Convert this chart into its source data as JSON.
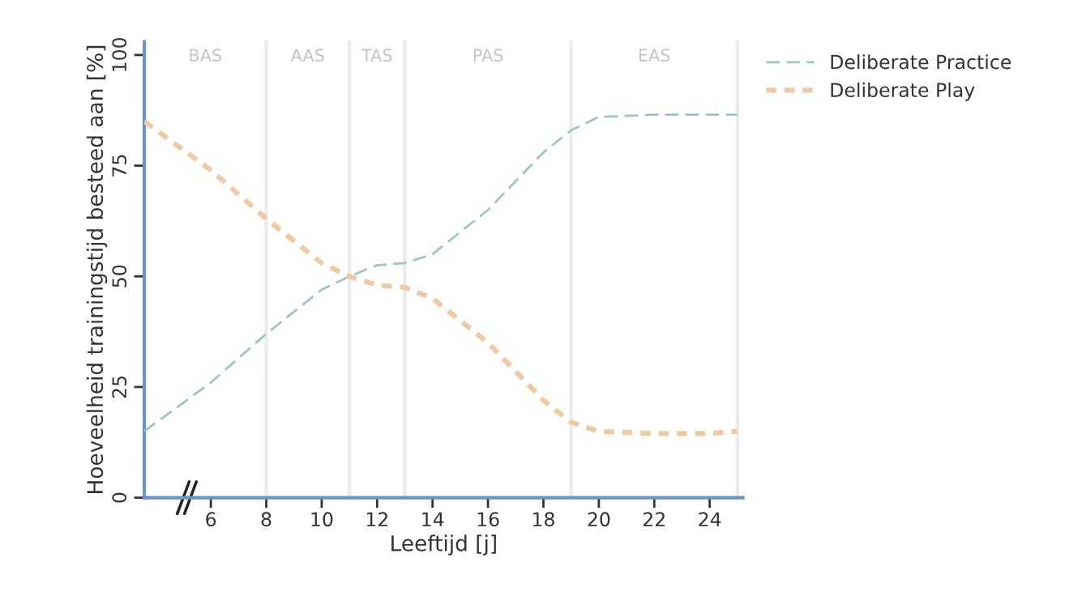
{
  "chart_data": {
    "type": "line",
    "xlabel": "Leeftijd [j]",
    "ylabel": "Hoeveelheid trainingstijd besteed aan [%]",
    "x": [
      3.6,
      6,
      8,
      10,
      11,
      12,
      13,
      14,
      16,
      18,
      19,
      20,
      22,
      24,
      25
    ],
    "series": [
      {
        "name": "Deliberate Practice",
        "color": "#9cc5c8",
        "line_style": "dashed",
        "values": [
          15,
          26,
          37,
          47,
          50,
          52.5,
          53,
          55,
          65,
          78,
          83,
          86,
          86.5,
          86.5,
          86.5
        ]
      },
      {
        "name": "Deliberate Play",
        "color": "#f0c9a5",
        "line_style": "dotted",
        "values": [
          85,
          74,
          63,
          53,
          50,
          48,
          47.5,
          45,
          35,
          22,
          17,
          15,
          14.5,
          14.5,
          15
        ]
      }
    ],
    "xlim": [
      3.6,
      25.2
    ],
    "xticks": [
      6,
      8,
      10,
      12,
      14,
      16,
      18,
      20,
      22,
      24
    ],
    "ylim": [
      0,
      103
    ],
    "yticks": [
      0,
      25,
      50,
      75,
      100
    ],
    "ref_lines": [
      {
        "axis": "x",
        "value": 8,
        "color": "#ebebeb"
      },
      {
        "axis": "x",
        "value": 11,
        "color": "#ebebeb"
      },
      {
        "axis": "x",
        "value": 13,
        "color": "#ebebeb"
      },
      {
        "axis": "x",
        "value": 19,
        "color": "#ebebeb"
      },
      {
        "axis": "x",
        "value": 25,
        "color": "#ebebeb"
      }
    ],
    "annotations": [
      "BAS",
      "AAS",
      "TAS",
      "PAS",
      "EAS"
    ],
    "grid": false,
    "legend": "top right",
    "marker": "none"
  }
}
